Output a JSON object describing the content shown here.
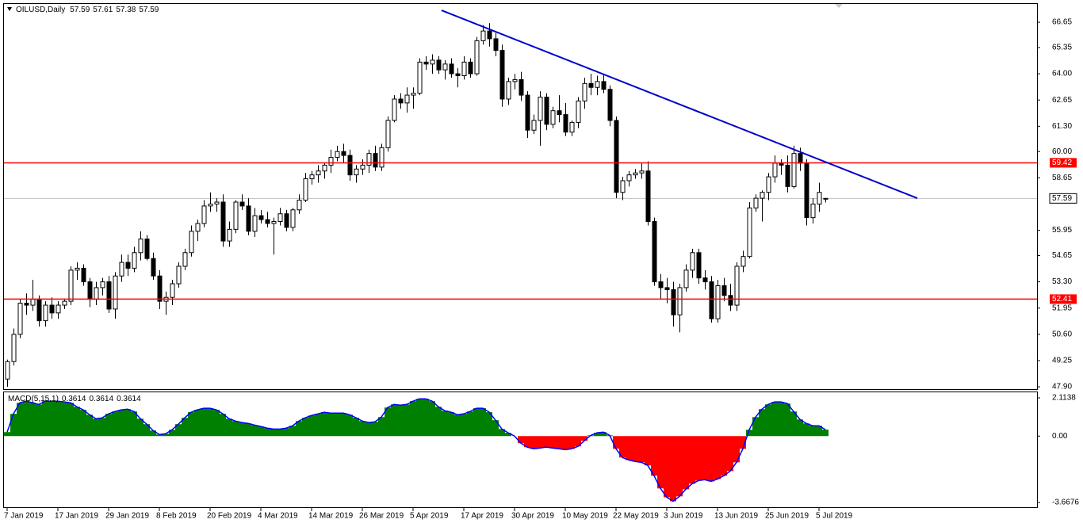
{
  "chart_data": {
    "type": "candlestick",
    "title": "OILUSD,Daily",
    "categories": [
      "7 Jan 2019",
      null,
      null,
      null,
      null,
      null,
      null,
      null,
      "17 Jan 2019",
      null,
      null,
      null,
      null,
      null,
      null,
      null,
      "29 Jan 2019",
      null,
      null,
      null,
      null,
      null,
      null,
      null,
      "8 Feb 2019",
      null,
      null,
      null,
      null,
      null,
      null,
      null,
      "20 Feb 2019",
      null,
      null,
      null,
      null,
      null,
      null,
      null,
      "4 Mar 2019",
      null,
      null,
      null,
      null,
      null,
      null,
      null,
      "14 Mar 2019",
      null,
      null,
      null,
      null,
      null,
      null,
      null,
      "26 Mar 2019",
      null,
      null,
      null,
      null,
      null,
      null,
      null,
      "5 Apr 2019",
      null,
      null,
      null,
      null,
      null,
      null,
      null,
      "17 Apr 2019",
      null,
      null,
      null,
      null,
      null,
      null,
      null,
      "30 Apr 2019",
      null,
      null,
      null,
      null,
      null,
      null,
      null,
      "10 May 2019",
      null,
      null,
      null,
      null,
      null,
      null,
      null,
      "22 May 2019",
      null,
      null,
      null,
      null,
      null,
      null,
      null,
      "3 Jun 2019",
      null,
      null,
      null,
      null,
      null,
      null,
      null,
      "13 Jun 2019",
      null,
      null,
      null,
      null,
      null,
      null,
      null,
      "25 Jun 2019",
      null,
      null,
      null,
      null,
      null,
      null,
      null,
      "5 Jul 2019",
      null
    ],
    "ohlc": [
      [
        48.3,
        49.3,
        47.9,
        49.2
      ],
      [
        49.2,
        50.9,
        49.0,
        50.6
      ],
      [
        50.6,
        52.4,
        50.4,
        52.2
      ],
      [
        52.2,
        52.7,
        51.6,
        52.1
      ],
      [
        52.1,
        53.4,
        51.8,
        52.4
      ],
      [
        52.4,
        52.6,
        51.0,
        51.3
      ],
      [
        51.3,
        52.3,
        51.0,
        52.1
      ],
      [
        52.1,
        52.5,
        51.4,
        51.7
      ],
      [
        51.7,
        52.3,
        51.4,
        52.1
      ],
      [
        52.1,
        52.4,
        51.9,
        52.3
      ],
      [
        52.3,
        54.1,
        52.1,
        53.9
      ],
      [
        53.9,
        54.3,
        53.4,
        54.0
      ],
      [
        54.0,
        54.2,
        53.1,
        53.3
      ],
      [
        53.3,
        53.5,
        52.0,
        52.4
      ],
      [
        52.4,
        53.3,
        52.1,
        53.0
      ],
      [
        53.0,
        53.5,
        52.6,
        53.3
      ],
      [
        53.3,
        53.6,
        51.7,
        51.9
      ],
      [
        51.9,
        53.8,
        51.4,
        53.6
      ],
      [
        53.6,
        54.7,
        53.3,
        54.3
      ],
      [
        54.3,
        54.7,
        53.6,
        54.0
      ],
      [
        54.0,
        55.1,
        53.8,
        54.8
      ],
      [
        54.8,
        55.9,
        54.4,
        55.5
      ],
      [
        55.5,
        55.7,
        54.4,
        54.5
      ],
      [
        54.5,
        54.8,
        53.4,
        53.6
      ],
      [
        53.6,
        53.9,
        51.9,
        52.3
      ],
      [
        52.3,
        52.8,
        51.6,
        52.5
      ],
      [
        52.5,
        53.4,
        52.1,
        53.2
      ],
      [
        53.2,
        54.3,
        53.0,
        54.1
      ],
      [
        54.1,
        55.0,
        53.9,
        54.8
      ],
      [
        54.8,
        56.2,
        54.6,
        55.9
      ],
      [
        55.9,
        56.5,
        55.4,
        56.3
      ],
      [
        56.3,
        57.5,
        56.1,
        57.2
      ],
      [
        57.2,
        57.9,
        56.9,
        57.3
      ],
      [
        57.3,
        57.6,
        56.9,
        57.4
      ],
      [
        57.4,
        57.8,
        55.1,
        55.4
      ],
      [
        55.4,
        56.4,
        55.1,
        56.0
      ],
      [
        56.0,
        57.5,
        55.8,
        57.4
      ],
      [
        57.4,
        57.8,
        57.0,
        57.2
      ],
      [
        57.2,
        57.6,
        55.7,
        55.9
      ],
      [
        55.9,
        57.1,
        55.6,
        56.7
      ],
      [
        56.7,
        57.0,
        56.3,
        56.5
      ],
      [
        56.5,
        56.9,
        56.1,
        56.3
      ],
      [
        56.3,
        56.6,
        54.7,
        56.4
      ],
      [
        56.4,
        57.1,
        56.2,
        56.8
      ],
      [
        56.8,
        57.0,
        55.9,
        56.1
      ],
      [
        56.1,
        57.1,
        55.9,
        57.0
      ],
      [
        57.0,
        57.8,
        56.8,
        57.5
      ],
      [
        57.5,
        58.9,
        57.4,
        58.6
      ],
      [
        58.6,
        59.0,
        58.3,
        58.8
      ],
      [
        58.8,
        59.3,
        58.4,
        59.0
      ],
      [
        59.0,
        59.4,
        58.6,
        59.3
      ],
      [
        59.3,
        60.1,
        58.9,
        59.7
      ],
      [
        59.7,
        60.3,
        59.5,
        60.0
      ],
      [
        60.0,
        60.4,
        59.4,
        59.8
      ],
      [
        59.8,
        60.1,
        58.5,
        58.8
      ],
      [
        58.8,
        59.3,
        58.4,
        59.1
      ],
      [
        59.1,
        59.6,
        58.8,
        59.3
      ],
      [
        59.3,
        60.1,
        58.9,
        59.9
      ],
      [
        59.9,
        60.3,
        59.0,
        59.2
      ],
      [
        59.2,
        60.4,
        59.0,
        60.2
      ],
      [
        60.2,
        61.8,
        60.0,
        61.6
      ],
      [
        61.6,
        62.9,
        61.5,
        62.7
      ],
      [
        62.7,
        63.0,
        62.2,
        62.5
      ],
      [
        62.5,
        63.3,
        62.0,
        62.9
      ],
      [
        62.9,
        63.3,
        62.2,
        63.0
      ],
      [
        63.0,
        64.8,
        62.9,
        64.6
      ],
      [
        64.6,
        64.9,
        64.2,
        64.5
      ],
      [
        64.5,
        65.0,
        64.0,
        64.7
      ],
      [
        64.7,
        64.9,
        64.0,
        64.2
      ],
      [
        64.2,
        64.7,
        63.7,
        64.5
      ],
      [
        64.5,
        64.8,
        63.8,
        64.0
      ],
      [
        64.0,
        64.3,
        63.3,
        63.9
      ],
      [
        63.9,
        64.9,
        63.7,
        64.6
      ],
      [
        64.6,
        64.8,
        63.8,
        64.0
      ],
      [
        64.0,
        65.9,
        63.9,
        65.7
      ],
      [
        65.7,
        66.5,
        65.5,
        66.2
      ],
      [
        66.2,
        66.6,
        65.4,
        65.8
      ],
      [
        65.8,
        66.1,
        64.9,
        65.2
      ],
      [
        65.2,
        65.5,
        62.3,
        62.7
      ],
      [
        62.7,
        63.8,
        62.4,
        63.6
      ],
      [
        63.6,
        64.0,
        63.2,
        63.7
      ],
      [
        63.7,
        64.1,
        62.6,
        62.9
      ],
      [
        62.9,
        63.1,
        60.7,
        61.1
      ],
      [
        61.1,
        61.9,
        60.9,
        61.6
      ],
      [
        61.6,
        63.1,
        60.3,
        62.8
      ],
      [
        62.8,
        63.0,
        61.1,
        61.4
      ],
      [
        61.4,
        62.3,
        61.2,
        62.1
      ],
      [
        62.1,
        62.9,
        61.5,
        61.9
      ],
      [
        61.9,
        62.5,
        60.8,
        61.0
      ],
      [
        61.0,
        61.6,
        60.8,
        61.5
      ],
      [
        61.5,
        62.8,
        61.2,
        62.6
      ],
      [
        62.6,
        63.8,
        62.2,
        63.5
      ],
      [
        63.5,
        64.0,
        62.9,
        63.3
      ],
      [
        63.3,
        63.9,
        62.9,
        63.6
      ],
      [
        63.6,
        64.0,
        63.0,
        63.2
      ],
      [
        63.2,
        63.4,
        61.3,
        61.6
      ],
      [
        61.6,
        61.8,
        57.6,
        57.9
      ],
      [
        57.9,
        58.7,
        57.5,
        58.5
      ],
      [
        58.5,
        59.0,
        58.2,
        58.8
      ],
      [
        58.8,
        59.1,
        58.6,
        58.9
      ],
      [
        58.9,
        59.4,
        58.6,
        59.0
      ],
      [
        59.0,
        59.5,
        56.2,
        56.4
      ],
      [
        56.4,
        56.6,
        53.1,
        53.3
      ],
      [
        53.3,
        53.7,
        52.4,
        53.0
      ],
      [
        53.0,
        53.5,
        52.2,
        52.9
      ],
      [
        52.9,
        53.3,
        51.0,
        51.6
      ],
      [
        51.6,
        53.2,
        50.7,
        53.0
      ],
      [
        53.0,
        54.2,
        52.8,
        53.9
      ],
      [
        53.9,
        55.0,
        53.5,
        54.8
      ],
      [
        54.8,
        55.0,
        53.2,
        53.5
      ],
      [
        53.5,
        53.9,
        52.9,
        53.3
      ],
      [
        53.3,
        53.6,
        51.2,
        51.4
      ],
      [
        51.4,
        53.4,
        51.2,
        53.1
      ],
      [
        53.1,
        53.5,
        52.3,
        52.6
      ],
      [
        52.6,
        53.2,
        51.8,
        52.1
      ],
      [
        52.1,
        54.3,
        51.8,
        54.1
      ],
      [
        54.1,
        54.9,
        53.8,
        54.6
      ],
      [
        54.6,
        57.4,
        54.5,
        57.1
      ],
      [
        57.1,
        57.8,
        56.9,
        57.6
      ],
      [
        57.6,
        58.0,
        56.4,
        57.9
      ],
      [
        57.9,
        58.9,
        57.5,
        58.7
      ],
      [
        58.7,
        59.8,
        58.4,
        59.4
      ],
      [
        59.4,
        59.6,
        58.8,
        59.3
      ],
      [
        59.3,
        59.8,
        57.9,
        58.2
      ],
      [
        58.2,
        60.3,
        58.1,
        59.9
      ],
      [
        59.9,
        60.2,
        59.0,
        59.4
      ],
      [
        59.4,
        59.6,
        56.2,
        56.6
      ],
      [
        56.6,
        57.6,
        56.3,
        57.3
      ],
      [
        57.3,
        58.4,
        56.9,
        57.9
      ],
      [
        57.59,
        57.61,
        57.38,
        57.59
      ]
    ],
    "colors": {
      "up": "#ffffff",
      "down": "#000000",
      "outline": "#000000"
    },
    "ylim": [
      47.74,
      67.59
    ],
    "yticks": [
      {
        "value": 47.9,
        "label": "47.90"
      },
      49.25,
      {
        "value": 50.6,
        "label": "50.60"
      },
      51.95,
      {
        "value": 53.3,
        "label": "53.30"
      },
      54.65,
      55.95,
      58.65,
      {
        "value": 60,
        "label": "60.00"
      },
      {
        "value": 61.3,
        "label": "61.30"
      },
      62.65,
      {
        "value": 64,
        "label": "64.00"
      },
      65.35,
      66.65
    ],
    "levels": [
      {
        "value": 59.42,
        "color": "#ff0000"
      },
      {
        "value": 52.41,
        "color": "#ff0000"
      }
    ],
    "last_price": {
      "value": 57.59,
      "color": "#c0c0c0"
    },
    "trendline": {
      "x": [
        68.5,
        143.5
      ],
      "y": [
        67.26,
        57.6
      ],
      "color": "#0000cd"
    },
    "indicator": {
      "type": "area",
      "title": "MACD(5,15,1)",
      "values": [
        0.22,
        1.23,
        1.84,
        1.93,
        1.84,
        1.75,
        1.93,
        1.93,
        1.93,
        1.89,
        1.84,
        1.62,
        1.45,
        1.18,
        0.96,
        1.01,
        1.23,
        1.36,
        1.45,
        1.49,
        1.36,
        0.96,
        0.66,
        0.31,
        0.09,
        0.13,
        0.35,
        0.66,
        1.01,
        1.32,
        1.45,
        1.54,
        1.54,
        1.45,
        1.23,
        0.96,
        0.83,
        0.75,
        0.7,
        0.61,
        0.53,
        0.44,
        0.39,
        0.39,
        0.44,
        0.57,
        0.83,
        1.01,
        1.14,
        1.23,
        1.32,
        1.27,
        1.27,
        1.27,
        1.18,
        1.01,
        0.83,
        0.75,
        0.79,
        1.05,
        1.58,
        1.75,
        1.71,
        1.75,
        1.93,
        2.06,
        2.06,
        1.93,
        1.62,
        1.4,
        1.32,
        1.18,
        1.23,
        1.36,
        1.54,
        1.54,
        1.32,
        0.88,
        0.39,
        0.18,
        0.0,
        -0.39,
        -0.61,
        -0.7,
        -0.66,
        -0.61,
        -0.66,
        -0.7,
        -0.75,
        -0.7,
        -0.57,
        -0.26,
        0.04,
        0.18,
        0.22,
        0.04,
        -0.7,
        -1.18,
        -1.32,
        -1.4,
        -1.45,
        -1.62,
        -2.19,
        -2.89,
        -3.38,
        -3.6,
        -3.33,
        -2.94,
        -2.63,
        -2.46,
        -2.41,
        -2.5,
        -2.37,
        -2.19,
        -1.93,
        -1.45,
        -0.7,
        0.35,
        1.05,
        1.49,
        1.75,
        1.89,
        1.89,
        1.8,
        1.36,
        0.92,
        0.7,
        0.57,
        0.57,
        0.3614
      ],
      "colors": {
        "positive": "#008000",
        "negative": "#ff0000",
        "line": "#0000ff"
      },
      "ylim": [
        -3.93,
        2.42
      ],
      "yticks": [
        2.1138,
        {
          "value": 0,
          "label": "0.00"
        },
        -3.6676
      ]
    }
  }
}
